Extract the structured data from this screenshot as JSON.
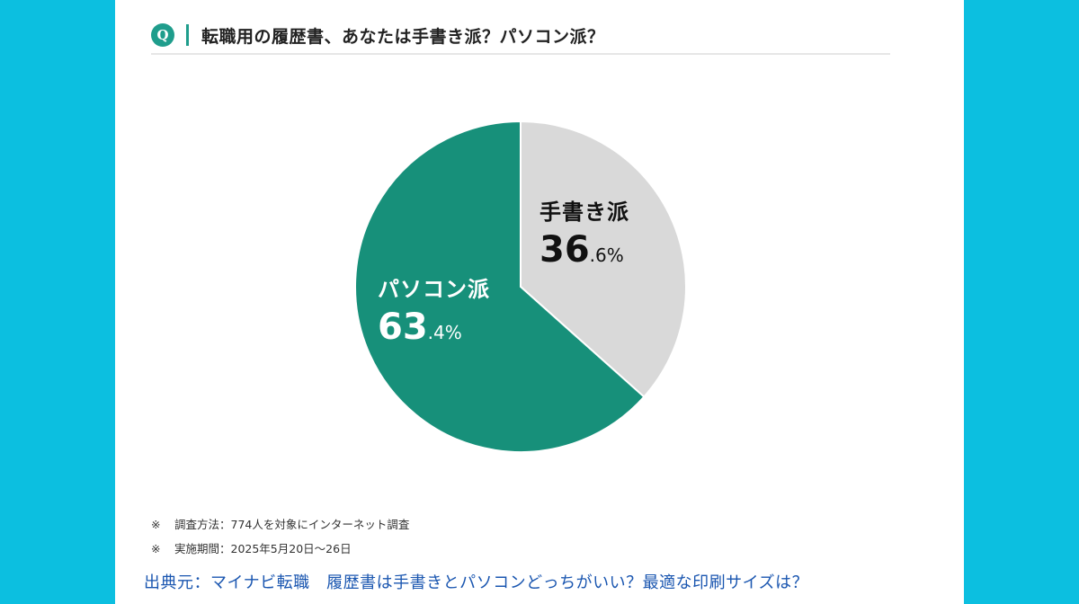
{
  "header": {
    "badge": "Q",
    "title": "転職用の履歴書、あなたは手書き派？パソコン派？"
  },
  "colors": {
    "background": "#0cbfe0",
    "accent": "#1f9d8c",
    "pc_slice": "#17907a",
    "handwritten_slice": "#d9d9d9",
    "source_link": "#1a56b0"
  },
  "chart_data": {
    "type": "pie",
    "title": "転職用の履歴書、あなたは手書き派？パソコン派？",
    "categories": [
      "手書き派",
      "パソコン派"
    ],
    "values": [
      36.6,
      63.4
    ],
    "unit": "%",
    "colors": [
      "#d9d9d9",
      "#17907a"
    ],
    "start_angle": "12 o'clock, clockwise",
    "legend": "none (direct labels)"
  },
  "labels": {
    "handwritten": {
      "name": "手書き派",
      "int": "36",
      "dec": ".6%"
    },
    "pc": {
      "name": "パソコン派",
      "int": "63",
      "dec": ".4%"
    }
  },
  "notes": [
    {
      "mark": "※",
      "text": "調査方法：774人を対象にインターネット調査"
    },
    {
      "mark": "※",
      "text": "実施期間：2025年5月20日～26日"
    }
  ],
  "source": {
    "text": "出典元：マイナビ転職　履歴書は手書きとパソコンどっちがいい？最適な印刷サイズは？"
  }
}
